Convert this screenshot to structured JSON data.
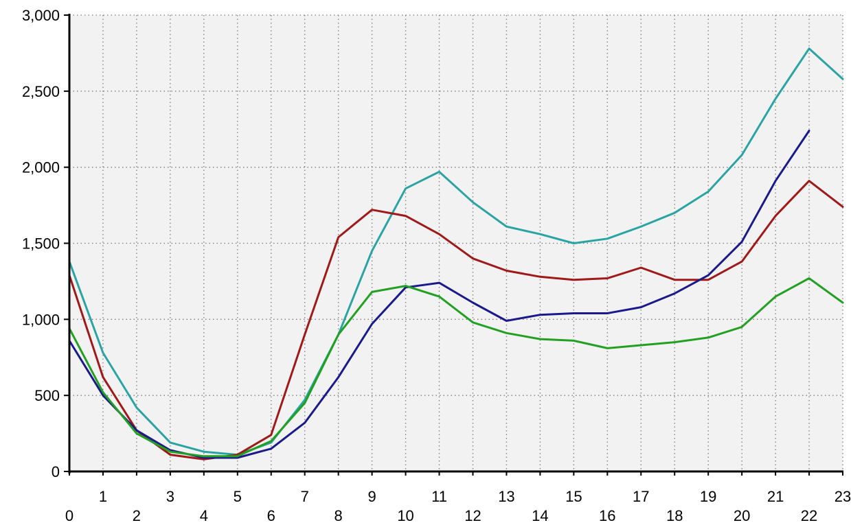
{
  "chart_data": {
    "type": "line",
    "title": "",
    "xlabel": "",
    "ylabel": "",
    "x": [
      0,
      1,
      2,
      3,
      4,
      5,
      6,
      7,
      8,
      9,
      10,
      11,
      12,
      13,
      14,
      15,
      16,
      17,
      18,
      19,
      20,
      21,
      22,
      23
    ],
    "xticks_row1": [
      "1",
      "3",
      "5",
      "7",
      "9",
      "11",
      "13",
      "15",
      "17",
      "19",
      "21",
      "23"
    ],
    "xticks_row2": [
      "0",
      "2",
      "4",
      "6",
      "8",
      "10",
      "12",
      "14",
      "16",
      "18",
      "20",
      "22"
    ],
    "yticks": [
      "0",
      "500",
      "1,000",
      "1,500",
      "2,000",
      "2,500",
      "3,000"
    ],
    "ylim": [
      0,
      3000
    ],
    "xlim": [
      0,
      23
    ],
    "grid": true,
    "legend": "none",
    "background_color": "#f2f2f2",
    "series": [
      {
        "color": "#2aa3a3",
        "values": [
          1380,
          780,
          420,
          190,
          130,
          110,
          190,
          470,
          900,
          1450,
          1860,
          1970,
          1770,
          1610,
          1560,
          1500,
          1530,
          1610,
          1700,
          1840,
          2080,
          2450,
          2780,
          2580
        ]
      },
      {
        "color": "#a01818",
        "values": [
          1290,
          620,
          270,
          110,
          80,
          110,
          240,
          900,
          1540,
          1720,
          1680,
          1560,
          1400,
          1320,
          1280,
          1260,
          1270,
          1340,
          1260,
          1260,
          1380,
          1680,
          1910,
          1740
        ]
      },
      {
        "color": "#1a1a8c",
        "values": [
          860,
          500,
          270,
          140,
          90,
          90,
          150,
          320,
          620,
          970,
          1210,
          1240,
          1110,
          990,
          1030,
          1040,
          1040,
          1080,
          1170,
          1290,
          1510,
          1910,
          2240,
          null
        ]
      },
      {
        "color": "#22a022",
        "values": [
          940,
          520,
          250,
          130,
          100,
          100,
          200,
          450,
          900,
          1180,
          1220,
          1150,
          980,
          910,
          870,
          860,
          810,
          830,
          850,
          880,
          950,
          1150,
          1270,
          1110
        ]
      }
    ]
  }
}
